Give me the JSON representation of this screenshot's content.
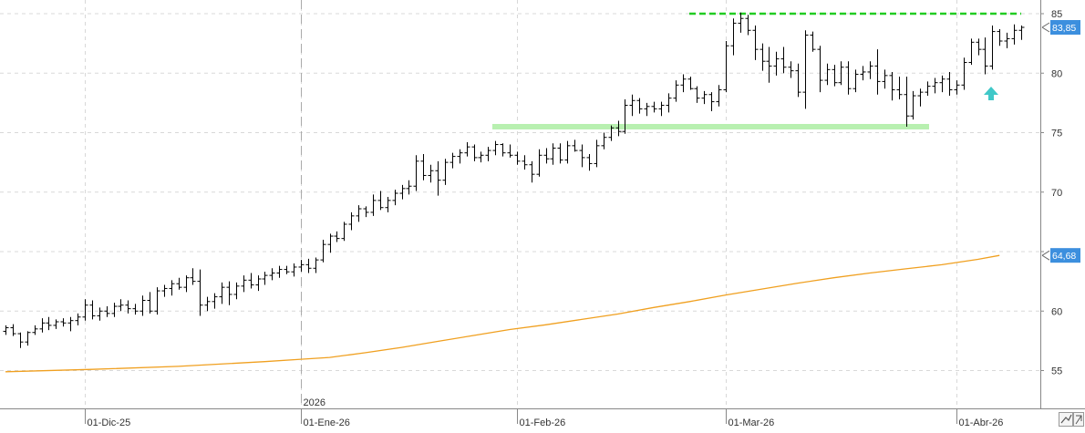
{
  "chart_data": {
    "type": "ohlc",
    "ylim": [
      52,
      86
    ],
    "y_ticks": [
      "85",
      "80",
      "75",
      "70",
      "65",
      "60",
      "55"
    ],
    "y_tick_values": [
      85,
      80,
      75,
      70,
      65,
      60,
      55
    ],
    "x_date_labels": [
      "01-Dic-25",
      "01-Ene-26",
      "01-Feb-26",
      "01-Mar-26",
      "01-Abr-26"
    ],
    "x_date_index": [
      11,
      41,
      71,
      100,
      132
    ],
    "year_label": "2026",
    "year_index": 41,
    "price_tags": [
      {
        "label": "83,85",
        "value": 83.85,
        "color": "#3c8fde"
      },
      {
        "label": "64,68",
        "value": 64.68,
        "color": "#3c8fde"
      }
    ],
    "colors": {
      "bars": "#000000",
      "moving_average": "#f0a020",
      "resistance": "#22cc22",
      "support": "#b8f0b0",
      "arrow": "#40c8c8",
      "grid": "#d8d8d8"
    },
    "resistance_level": 85.0,
    "support_level": 75.5,
    "ohlc_values": [
      [
        58.3,
        58.8,
        58.0,
        58.6
      ],
      [
        58.6,
        58.9,
        57.9,
        58.1
      ],
      [
        58.1,
        58.2,
        56.9,
        57.4
      ],
      [
        57.4,
        58.3,
        57.1,
        58.2
      ],
      [
        58.2,
        58.8,
        58.0,
        58.5
      ],
      [
        58.5,
        59.4,
        58.2,
        59.0
      ],
      [
        59.0,
        59.5,
        58.4,
        58.8
      ],
      [
        58.8,
        59.3,
        58.5,
        59.1
      ],
      [
        59.1,
        59.4,
        58.7,
        59.0
      ],
      [
        59.0,
        59.5,
        58.3,
        59.2
      ],
      [
        59.2,
        59.8,
        58.8,
        59.5
      ],
      [
        59.5,
        61.0,
        59.2,
        60.5
      ],
      [
        60.5,
        60.9,
        59.3,
        59.6
      ],
      [
        59.6,
        60.3,
        59.2,
        60.0
      ],
      [
        60.0,
        60.4,
        59.5,
        59.8
      ],
      [
        59.8,
        60.7,
        59.5,
        60.4
      ],
      [
        60.4,
        61.0,
        60.0,
        60.5
      ],
      [
        60.5,
        60.9,
        59.8,
        60.2
      ],
      [
        60.2,
        60.6,
        59.7,
        60.0
      ],
      [
        60.0,
        61.3,
        59.6,
        60.9
      ],
      [
        60.9,
        61.6,
        59.8,
        60.0
      ],
      [
        60.0,
        62.0,
        59.7,
        61.7
      ],
      [
        61.7,
        62.2,
        61.2,
        61.9
      ],
      [
        61.9,
        62.6,
        61.3,
        62.3
      ],
      [
        62.3,
        62.8,
        61.8,
        62.0
      ],
      [
        62.0,
        63.0,
        61.6,
        62.8
      ],
      [
        62.8,
        63.6,
        62.2,
        62.5
      ],
      [
        62.5,
        63.5,
        59.6,
        60.5
      ],
      [
        60.5,
        61.2,
        60.0,
        60.8
      ],
      [
        60.8,
        61.5,
        60.2,
        61.2
      ],
      [
        61.2,
        62.4,
        60.6,
        62.0
      ],
      [
        62.0,
        62.5,
        60.5,
        61.4
      ],
      [
        61.4,
        62.4,
        61.0,
        62.1
      ],
      [
        62.1,
        63.0,
        61.6,
        62.6
      ],
      [
        62.6,
        63.2,
        61.9,
        62.2
      ],
      [
        62.2,
        63.0,
        61.7,
        62.7
      ],
      [
        62.7,
        63.3,
        62.2,
        63.0
      ],
      [
        63.0,
        63.6,
        62.6,
        63.2
      ],
      [
        63.2,
        63.8,
        62.8,
        63.5
      ],
      [
        63.5,
        63.8,
        63.1,
        63.3
      ],
      [
        63.3,
        64.0,
        62.9,
        63.7
      ],
      [
        63.7,
        64.3,
        63.3,
        63.9
      ],
      [
        63.9,
        64.4,
        63.2,
        63.6
      ],
      [
        63.6,
        64.5,
        63.2,
        64.3
      ],
      [
        64.3,
        66.0,
        64.1,
        65.6
      ],
      [
        65.6,
        66.5,
        64.9,
        66.3
      ],
      [
        66.3,
        66.7,
        65.8,
        66.1
      ],
      [
        66.1,
        67.5,
        65.9,
        67.3
      ],
      [
        67.3,
        68.3,
        66.8,
        68.0
      ],
      [
        68.0,
        68.9,
        67.5,
        68.6
      ],
      [
        68.6,
        68.8,
        67.9,
        68.3
      ],
      [
        68.3,
        69.8,
        68.0,
        69.3
      ],
      [
        69.3,
        70.1,
        68.5,
        68.7
      ],
      [
        68.7,
        69.6,
        68.3,
        69.3
      ],
      [
        69.3,
        70.2,
        68.9,
        69.9
      ],
      [
        69.9,
        70.6,
        69.4,
        70.3
      ],
      [
        70.3,
        71.0,
        69.8,
        70.5
      ],
      [
        70.5,
        73.1,
        70.1,
        72.6
      ],
      [
        72.6,
        73.2,
        71.0,
        71.4
      ],
      [
        71.4,
        72.3,
        70.8,
        71.8
      ],
      [
        71.8,
        72.6,
        69.7,
        71.0
      ],
      [
        71.0,
        72.8,
        70.6,
        72.5
      ],
      [
        72.5,
        73.3,
        72.0,
        73.0
      ],
      [
        73.0,
        73.6,
        72.4,
        73.3
      ],
      [
        73.3,
        74.2,
        73.0,
        73.8
      ],
      [
        73.8,
        74.0,
        72.6,
        72.9
      ],
      [
        72.9,
        73.4,
        72.5,
        73.1
      ],
      [
        73.1,
        73.8,
        72.6,
        73.5
      ],
      [
        73.5,
        74.3,
        73.1,
        74.0
      ],
      [
        74.0,
        74.1,
        73.0,
        73.3
      ],
      [
        73.3,
        74.0,
        72.9,
        73.1
      ],
      [
        73.1,
        73.4,
        72.3,
        72.6
      ],
      [
        72.6,
        73.1,
        71.9,
        72.3
      ],
      [
        72.3,
        72.6,
        70.8,
        71.5
      ],
      [
        71.5,
        73.6,
        71.3,
        73.1
      ],
      [
        73.1,
        73.7,
        72.4,
        72.8
      ],
      [
        72.8,
        74.1,
        72.3,
        73.7
      ],
      [
        73.7,
        74.1,
        72.4,
        72.7
      ],
      [
        72.7,
        74.3,
        72.4,
        73.9
      ],
      [
        73.9,
        74.4,
        73.4,
        73.5
      ],
      [
        73.5,
        74.0,
        72.1,
        72.9
      ],
      [
        72.9,
        73.2,
        71.8,
        72.4
      ],
      [
        72.4,
        74.4,
        72.1,
        73.9
      ],
      [
        73.9,
        75.0,
        73.6,
        74.6
      ],
      [
        74.6,
        75.6,
        74.3,
        75.4
      ],
      [
        75.4,
        76.0,
        74.7,
        75.1
      ],
      [
        75.1,
        77.8,
        74.9,
        77.3
      ],
      [
        77.3,
        78.2,
        76.4,
        77.7
      ],
      [
        77.7,
        77.9,
        76.6,
        77.0
      ],
      [
        77.0,
        77.5,
        76.4,
        77.2
      ],
      [
        77.2,
        77.6,
        76.7,
        77.0
      ],
      [
        77.0,
        77.6,
        76.4,
        77.3
      ],
      [
        77.3,
        78.3,
        76.7,
        77.9
      ],
      [
        77.9,
        79.4,
        77.6,
        79.0
      ],
      [
        79.0,
        79.9,
        78.4,
        79.5
      ],
      [
        79.5,
        79.7,
        78.6,
        78.7
      ],
      [
        78.7,
        78.9,
        77.5,
        77.9
      ],
      [
        77.9,
        78.5,
        77.4,
        78.2
      ],
      [
        78.2,
        78.4,
        76.8,
        77.6
      ],
      [
        77.6,
        79.0,
        77.2,
        78.6
      ],
      [
        78.6,
        82.7,
        78.4,
        82.3
      ],
      [
        82.3,
        84.6,
        81.5,
        84.2
      ],
      [
        84.2,
        85.1,
        83.4,
        84.6
      ],
      [
        84.6,
        84.9,
        83.2,
        83.6
      ],
      [
        83.6,
        84.0,
        81.1,
        82.0
      ],
      [
        82.0,
        82.5,
        80.2,
        81.0
      ],
      [
        81.0,
        82.2,
        79.2,
        80.6
      ],
      [
        80.6,
        81.8,
        79.8,
        81.2
      ],
      [
        81.2,
        82.2,
        80.0,
        80.5
      ],
      [
        80.5,
        81.0,
        79.6,
        80.2
      ],
      [
        80.2,
        80.8,
        78.0,
        78.4
      ],
      [
        78.4,
        83.6,
        77.0,
        83.2
      ],
      [
        83.2,
        83.5,
        81.8,
        82.0
      ],
      [
        82.0,
        82.3,
        78.4,
        79.4
      ],
      [
        79.4,
        80.8,
        79.0,
        80.3
      ],
      [
        80.3,
        80.7,
        78.9,
        79.2
      ],
      [
        79.2,
        81.0,
        79.0,
        80.5
      ],
      [
        80.5,
        81.0,
        78.2,
        78.7
      ],
      [
        78.7,
        80.3,
        78.4,
        79.9
      ],
      [
        79.9,
        80.6,
        79.4,
        80.1
      ],
      [
        80.1,
        81.0,
        79.5,
        80.6
      ],
      [
        80.6,
        82.0,
        78.2,
        79.3
      ],
      [
        79.3,
        80.3,
        78.7,
        79.8
      ],
      [
        79.8,
        80.1,
        77.7,
        78.6
      ],
      [
        78.6,
        79.7,
        77.8,
        78.2
      ],
      [
        78.2,
        79.7,
        75.5,
        76.4
      ],
      [
        76.4,
        78.5,
        76.1,
        78.1
      ],
      [
        78.1,
        78.7,
        77.2,
        78.4
      ],
      [
        78.4,
        79.3,
        78.1,
        78.9
      ],
      [
        78.9,
        79.6,
        78.3,
        79.2
      ],
      [
        79.2,
        79.8,
        78.4,
        79.5
      ],
      [
        79.5,
        80.1,
        78.1,
        78.6
      ],
      [
        78.6,
        79.4,
        78.2,
        79.0
      ],
      [
        79.0,
        81.3,
        78.6,
        80.9
      ],
      [
        80.9,
        82.9,
        80.7,
        82.6
      ],
      [
        82.6,
        82.9,
        81.5,
        82.0
      ],
      [
        82.0,
        83.0,
        79.9,
        80.6
      ],
      [
        80.6,
        84.0,
        80.3,
        83.5
      ],
      [
        83.5,
        83.7,
        82.3,
        82.7
      ],
      [
        82.7,
        83.4,
        82.1,
        82.9
      ],
      [
        82.9,
        84.1,
        82.4,
        83.6
      ],
      [
        83.6,
        84.0,
        82.8,
        83.85
      ]
    ],
    "moving_average_values": [
      [
        0,
        54.9
      ],
      [
        12,
        55.1
      ],
      [
        24,
        55.35
      ],
      [
        36,
        55.75
      ],
      [
        41,
        55.95
      ],
      [
        45,
        56.1
      ],
      [
        50,
        56.5
      ],
      [
        55,
        56.95
      ],
      [
        60,
        57.45
      ],
      [
        65,
        57.95
      ],
      [
        70,
        58.45
      ],
      [
        75,
        58.85
      ],
      [
        80,
        59.3
      ],
      [
        85,
        59.75
      ],
      [
        90,
        60.3
      ],
      [
        95,
        60.8
      ],
      [
        100,
        61.35
      ],
      [
        105,
        61.85
      ],
      [
        110,
        62.35
      ],
      [
        115,
        62.8
      ],
      [
        120,
        63.2
      ],
      [
        125,
        63.55
      ],
      [
        130,
        63.9
      ],
      [
        135,
        64.35
      ],
      [
        138,
        64.68
      ]
    ]
  }
}
